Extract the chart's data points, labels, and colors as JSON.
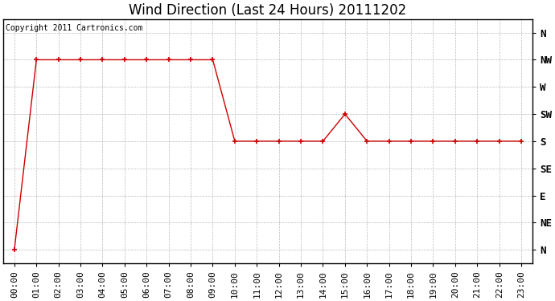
{
  "title": "Wind Direction (Last 24 Hours) 20111202",
  "copyright_text": "Copyright 2011 Cartronics.com",
  "line_color": "#cc0000",
  "marker": "+",
  "marker_size": 5,
  "marker_color": "#cc0000",
  "background_color": "#ffffff",
  "grid_color": "#bbbbbb",
  "x_labels": [
    "00:00",
    "01:00",
    "02:00",
    "03:00",
    "04:00",
    "05:00",
    "06:00",
    "07:00",
    "08:00",
    "09:00",
    "10:00",
    "11:00",
    "12:00",
    "13:00",
    "14:00",
    "15:00",
    "16:00",
    "17:00",
    "18:00",
    "19:00",
    "20:00",
    "21:00",
    "22:00",
    "23:00"
  ],
  "y_ticks_labels": [
    "N",
    "NW",
    "W",
    "SW",
    "S",
    "SE",
    "E",
    "NE",
    "N"
  ],
  "y_ticks_values": [
    8,
    7,
    6,
    5,
    4,
    3,
    2,
    1,
    0
  ],
  "data_x": [
    0,
    1,
    2,
    3,
    4,
    5,
    6,
    7,
    8,
    9,
    10,
    11,
    12,
    13,
    14,
    15,
    16,
    17,
    18,
    19,
    20,
    21,
    22,
    23
  ],
  "data_y": [
    0,
    7,
    7,
    7,
    7,
    7,
    7,
    7,
    7,
    7,
    4,
    4,
    4,
    4,
    4,
    5,
    4,
    4,
    4,
    4,
    4,
    4,
    4,
    4
  ],
  "title_fontsize": 12,
  "tick_fontsize": 8,
  "copyright_fontsize": 7
}
